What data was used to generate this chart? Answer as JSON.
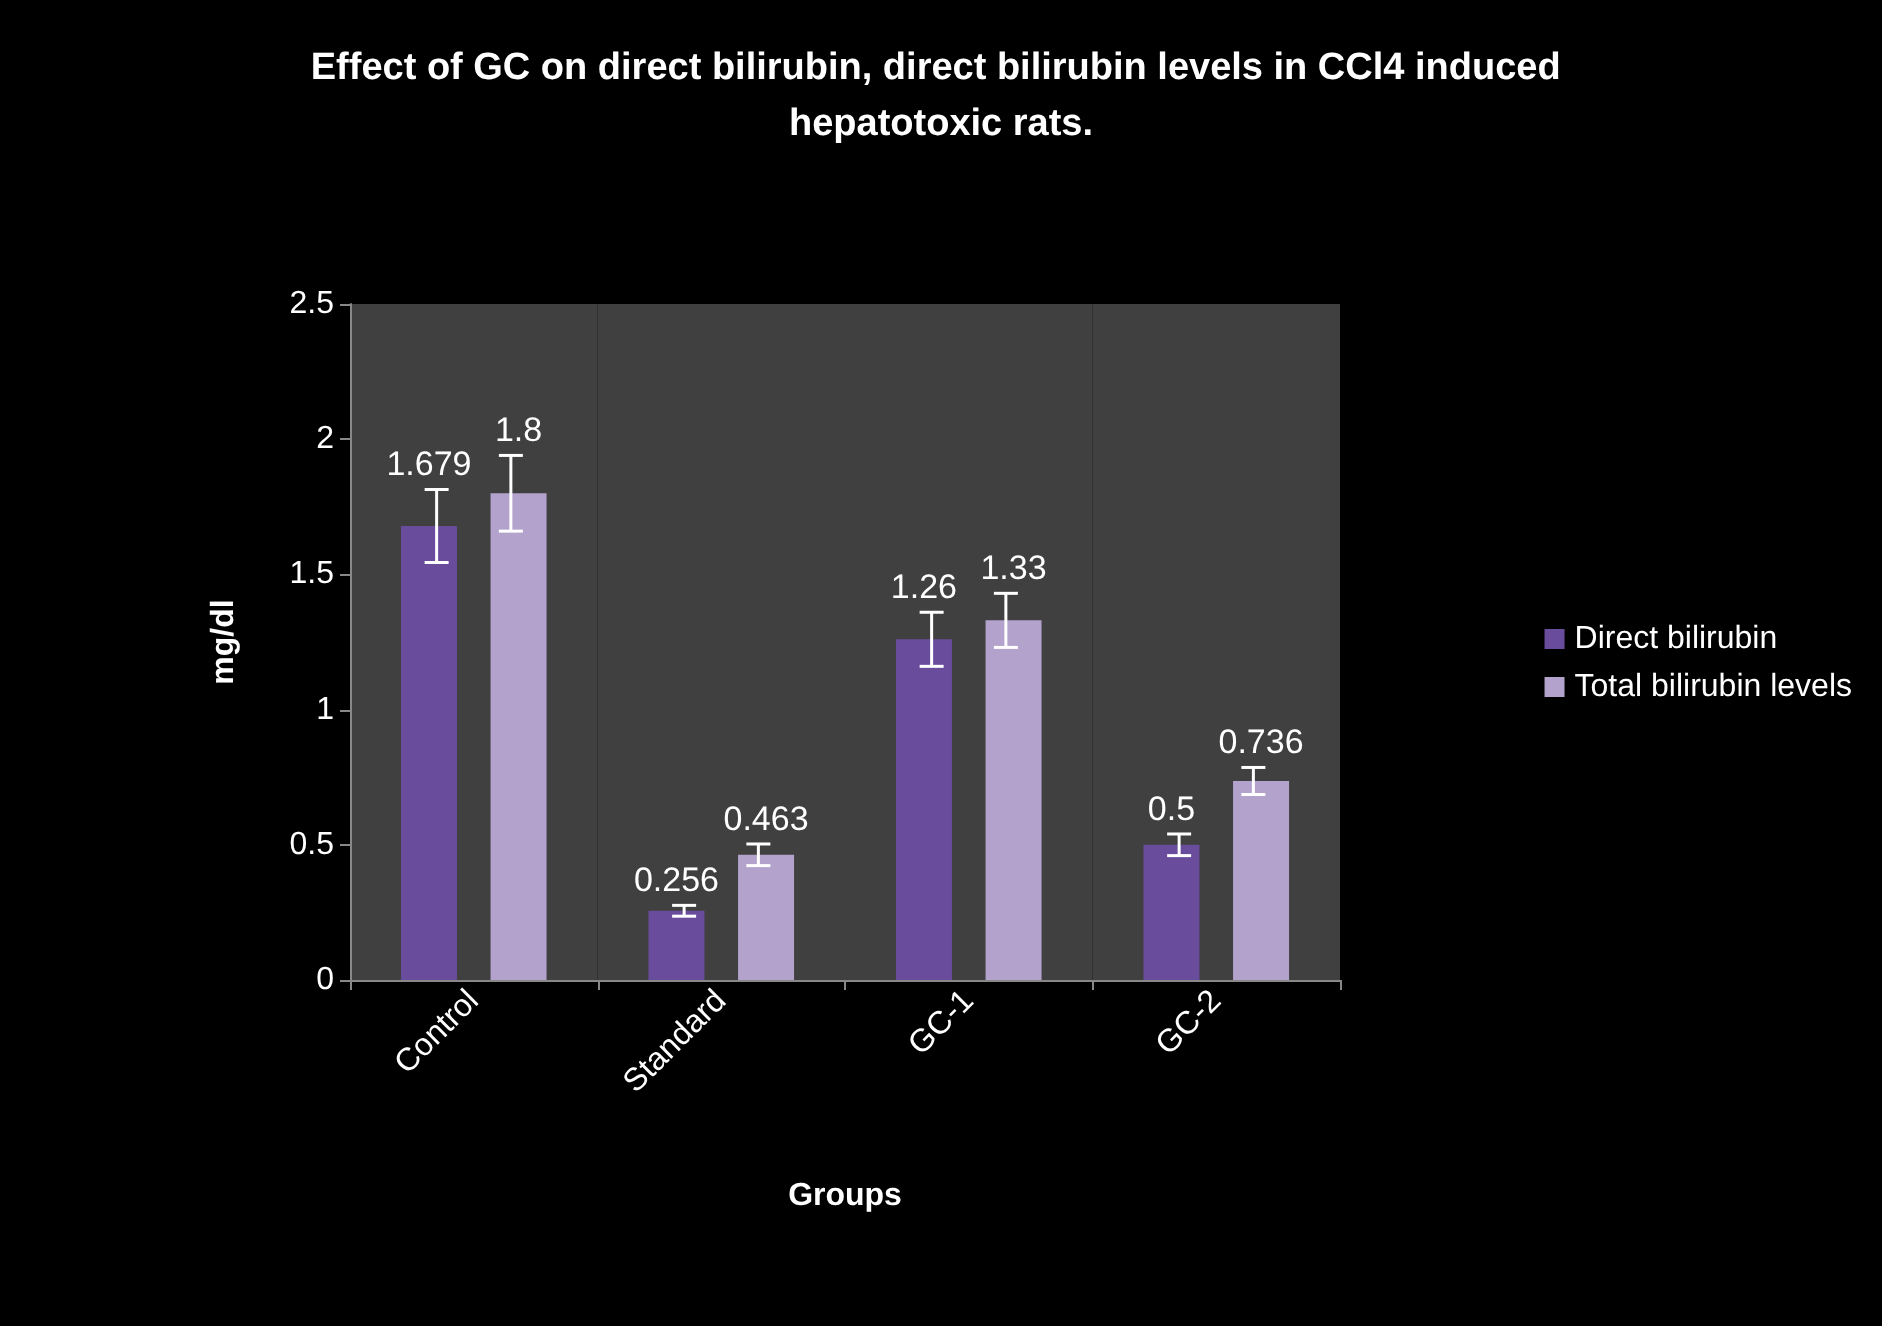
{
  "chart_data": {
    "type": "bar",
    "title": "Effect of GC on direct bilirubin, direct bilirubin levels in CCl4 induced hepatotoxic rats.",
    "xlabel": "Groups",
    "ylabel": "mg/dl",
    "categories": [
      "Control",
      "Standard",
      "GC-1",
      "GC-2"
    ],
    "series": [
      {
        "name": "Direct bilirubin",
        "color": "#6a4c9c",
        "values": [
          1.679,
          0.256,
          1.26,
          0.5
        ],
        "errors": [
          0.135,
          0.02,
          0.1,
          0.04
        ]
      },
      {
        "name": "Total bilirubin levels",
        "color": "#b3a2cc",
        "values": [
          1.8,
          0.463,
          1.33,
          0.736
        ],
        "errors": [
          0.14,
          0.04,
          0.1,
          0.05
        ]
      }
    ],
    "ylim": [
      0,
      2.5
    ],
    "yticks": [
      0,
      0.5,
      1,
      1.5,
      2,
      2.5
    ],
    "grid": false,
    "legend": "right",
    "data_labels": true
  }
}
